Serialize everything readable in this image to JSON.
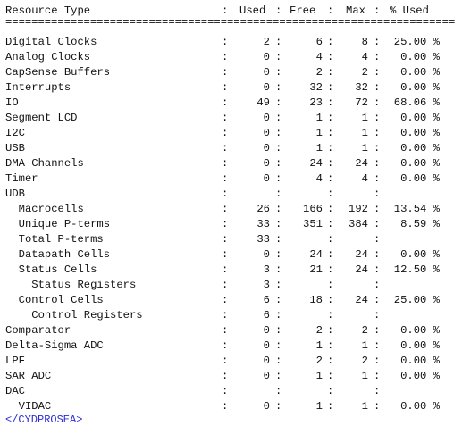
{
  "header": {
    "resource_type": "Resource Type",
    "used": "Used",
    "free": "Free",
    "max": "Max",
    "pct_used": "% Used"
  },
  "separator": "=====================================================================",
  "rows": [
    {
      "name": "Digital Clocks",
      "used": "2",
      "free": "6",
      "max": "8",
      "pct": "25.00 %"
    },
    {
      "name": "Analog Clocks",
      "used": "0",
      "free": "4",
      "max": "4",
      "pct": "0.00 %"
    },
    {
      "name": "CapSense Buffers",
      "used": "0",
      "free": "2",
      "max": "2",
      "pct": "0.00 %"
    },
    {
      "name": "Interrupts",
      "used": "0",
      "free": "32",
      "max": "32",
      "pct": "0.00 %"
    },
    {
      "name": "IO",
      "used": "49",
      "free": "23",
      "max": "72",
      "pct": "68.06 %"
    },
    {
      "name": "Segment LCD",
      "used": "0",
      "free": "1",
      "max": "1",
      "pct": "0.00 %"
    },
    {
      "name": "I2C",
      "used": "0",
      "free": "1",
      "max": "1",
      "pct": "0.00 %"
    },
    {
      "name": "USB",
      "used": "0",
      "free": "1",
      "max": "1",
      "pct": "0.00 %"
    },
    {
      "name": "DMA Channels",
      "used": "0",
      "free": "24",
      "max": "24",
      "pct": "0.00 %"
    },
    {
      "name": "Timer",
      "used": "0",
      "free": "4",
      "max": "4",
      "pct": "0.00 %"
    },
    {
      "name": "UDB",
      "used": "",
      "free": "",
      "max": "",
      "pct": ""
    },
    {
      "name": "  Macrocells",
      "used": "26",
      "free": "166",
      "max": "192",
      "pct": "13.54 %"
    },
    {
      "name": "  Unique P-terms",
      "used": "33",
      "free": "351",
      "max": "384",
      "pct": "8.59 %"
    },
    {
      "name": "  Total P-terms",
      "used": "33",
      "free": "",
      "max": "",
      "pct": ""
    },
    {
      "name": "  Datapath Cells",
      "used": "0",
      "free": "24",
      "max": "24",
      "pct": "0.00 %"
    },
    {
      "name": "  Status Cells",
      "used": "3",
      "free": "21",
      "max": "24",
      "pct": "12.50 %"
    },
    {
      "name": "    Status Registers",
      "used": "3",
      "free": "",
      "max": "",
      "pct": ""
    },
    {
      "name": "  Control Cells",
      "used": "6",
      "free": "18",
      "max": "24",
      "pct": "25.00 %"
    },
    {
      "name": "    Control Registers",
      "used": "6",
      "free": "",
      "max": "",
      "pct": ""
    },
    {
      "name": "Comparator",
      "used": "0",
      "free": "2",
      "max": "2",
      "pct": "0.00 %"
    },
    {
      "name": "Delta-Sigma ADC",
      "used": "0",
      "free": "1",
      "max": "1",
      "pct": "0.00 %"
    },
    {
      "name": "LPF",
      "used": "0",
      "free": "2",
      "max": "2",
      "pct": "0.00 %"
    },
    {
      "name": "SAR ADC",
      "used": "0",
      "free": "1",
      "max": "1",
      "pct": "0.00 %"
    },
    {
      "name": "DAC",
      "used": "",
      "free": "",
      "max": "",
      "pct": ""
    },
    {
      "name": "  VIDAC",
      "used": "0",
      "free": "1",
      "max": "1",
      "pct": "0.00 %"
    }
  ],
  "colors": {
    "text": "#111111",
    "background": "#ffffff",
    "link": "#2b2bd6"
  }
}
